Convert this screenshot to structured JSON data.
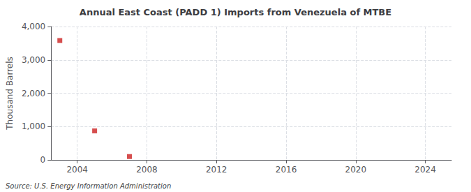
{
  "chart_data": {
    "type": "scatter",
    "title": "Annual East Coast (PADD 1) Imports from Venezuela of MTBE",
    "ylabel": "Thousand Barrels",
    "annotation": "Source: U.S. Energy Information Administration",
    "x": [
      2003,
      2005,
      2007
    ],
    "values": [
      3580,
      870,
      100
    ],
    "color": "#cc2222",
    "marker": "square",
    "xlim": [
      2002.5,
      2025.5
    ],
    "xticks": [
      2004,
      2008,
      2012,
      2016,
      2020,
      2024
    ],
    "ylim": [
      0,
      4000
    ],
    "yticks": [
      0,
      {
        "value": 1000,
        "label": "1,000"
      },
      {
        "value": 2000,
        "label": "2,000"
      },
      {
        "value": 3000,
        "label": "3,000"
      },
      {
        "value": 4000,
        "label": "4,000"
      }
    ],
    "grid": true
  }
}
